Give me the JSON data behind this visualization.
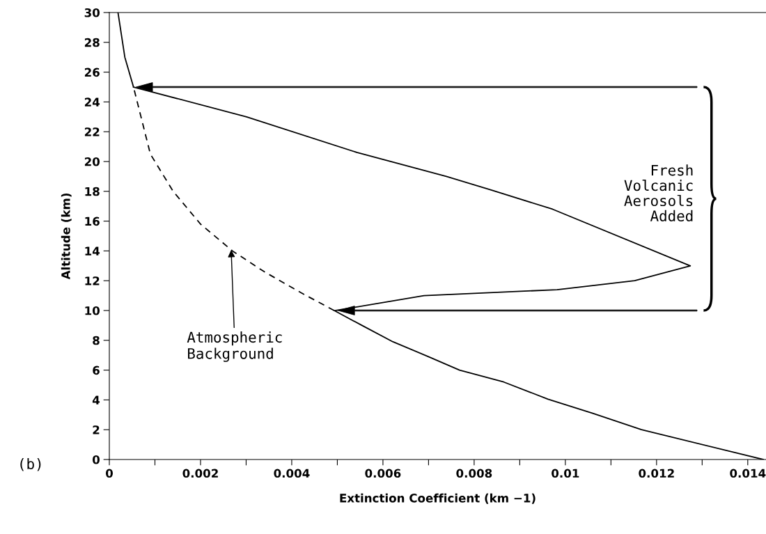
{
  "chart_data": {
    "type": "line",
    "xlabel": "Extinction Coefficient (km −1)",
    "ylabel": "Altitude (km)",
    "xlim": [
      0,
      0.0144
    ],
    "ylim": [
      0,
      30
    ],
    "xticks": [
      0,
      {
        "value": 0.001,
        "label": null
      },
      {
        "value": 0.002,
        "label": "0.002"
      },
      {
        "value": 0.003,
        "label": null
      },
      {
        "value": 0.004,
        "label": "0.004"
      },
      {
        "value": 0.005,
        "label": null
      },
      {
        "value": 0.006,
        "label": "0.006"
      },
      {
        "value": 0.007,
        "label": null
      },
      {
        "value": 0.008,
        "label": "0.008"
      },
      {
        "value": 0.009,
        "label": null
      },
      0.01,
      {
        "value": 0.011,
        "label": null
      },
      0.012,
      {
        "value": 0.013,
        "label": null
      },
      0.014
    ],
    "yticks": [
      0,
      2,
      4,
      6,
      8,
      10,
      12,
      14,
      16,
      18,
      20,
      22,
      24,
      26,
      28,
      30
    ],
    "grid": false,
    "legend": false,
    "marker": "none",
    "series": [
      {
        "color": "#000000",
        "line_style": "solid",
        "x": [
          0.01434,
          0.01167,
          0.0106,
          0.00962,
          0.00865,
          0.00768,
          0.007,
          0.00622,
          0.00554,
          0.00493
        ],
        "values": [
          0,
          2,
          3.1,
          4.05,
          5.2,
          6.0,
          6.9,
          7.9,
          9.0,
          10
        ]
      },
      {
        "color": "#000000",
        "line_style": "dashed",
        "x": [
          0.00493,
          0.0042,
          0.0034,
          0.0027,
          0.002,
          0.0014,
          0.0009,
          0.00053
        ],
        "values": [
          10,
          11.2,
          12.6,
          14,
          15.8,
          18,
          20.5,
          25
        ]
      },
      {
        "color": "#000000",
        "line_style": "solid",
        "x": [
          0.00053,
          0.00034,
          0.00019
        ],
        "values": [
          25,
          27,
          30
        ]
      },
      {
        "color": "#000000",
        "line_style": "solid",
        "x": [
          0.00053,
          0.00301,
          0.00544,
          0.00739,
          0.00836,
          0.00972,
          0.01274,
          0.01152,
          0.00982,
          0.0069,
          0.00496
        ],
        "values": [
          25,
          23,
          20.6,
          19,
          18.1,
          16.8,
          13.0,
          12.0,
          11.4,
          11,
          10
        ]
      }
    ],
    "annotations": [
      {
        "text": "Atmospheric\nBackground",
        "x": 0.00267,
        "y": 14.2
      },
      {
        "text": "Fresh\nVolcanic\nAerosols\nAdded"
      },
      "(b)"
    ]
  }
}
